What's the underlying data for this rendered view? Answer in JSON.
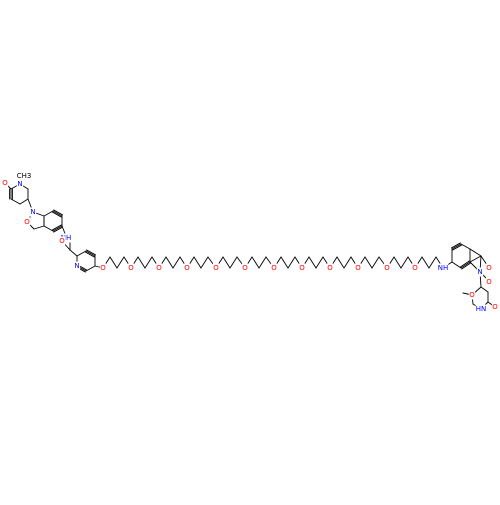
{
  "colors": {
    "bond": "#000000",
    "oxygen": "#ff0000",
    "nitrogen": "#0000ff",
    "carbon": "#000000",
    "background": "#ffffff"
  },
  "molecule": {
    "type": "skeletal-structure",
    "labels": {
      "ch3": "CH3",
      "o": "O",
      "n": "N",
      "nh": "NH",
      "hn": "HN"
    }
  }
}
